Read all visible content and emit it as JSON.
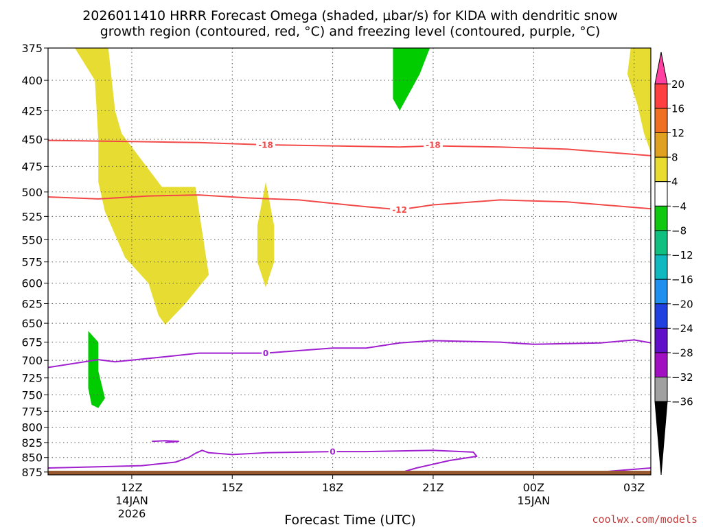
{
  "chart_data": {
    "type": "contour",
    "title_line1": "2026011410 HRRR Forecast Omega (shaded, μbar/s) for KIDA with dendritic snow",
    "title_line2": "growth region (contoured, red, °C) and freezing level (contoured, purple, °C)",
    "xlabel": "Forecast Time (UTC)",
    "credit": "coolwx.com/models",
    "y_axis": {
      "scale": "log",
      "reversed": true,
      "range": [
        375,
        880
      ],
      "ticks": [
        375,
        400,
        425,
        450,
        475,
        500,
        525,
        550,
        575,
        600,
        625,
        650,
        675,
        700,
        725,
        750,
        775,
        800,
        825,
        850,
        875
      ]
    },
    "x_axis": {
      "range": [
        9.5,
        27.5
      ],
      "grid": true,
      "ticks": [
        {
          "x": 12,
          "label": "12Z",
          "sub1": "14JAN",
          "sub2": "2026"
        },
        {
          "x": 15,
          "label": "15Z",
          "sub1": "",
          "sub2": ""
        },
        {
          "x": 18,
          "label": "18Z",
          "sub1": "",
          "sub2": ""
        },
        {
          "x": 21,
          "label": "21Z",
          "sub1": "",
          "sub2": ""
        },
        {
          "x": 24,
          "label": "00Z",
          "sub1": "15JAN",
          "sub2": ""
        },
        {
          "x": 27,
          "label": "03Z",
          "sub1": "",
          "sub2": ""
        }
      ]
    },
    "colorbar": {
      "labels": [
        "20",
        "16",
        "12",
        "8",
        "4",
        "−4",
        "−8",
        "−12",
        "−16",
        "−20",
        "−24",
        "−28",
        "−32",
        "−36"
      ],
      "colors": [
        "#ff40a0",
        "#ff4040",
        "#ee7020",
        "#e0a020",
        "#e8dc30",
        "#ffffff",
        "#10c810",
        "#10c080",
        "#10b8c0",
        "#2090f0",
        "#2040e0",
        "#6010c8",
        "#a010c0",
        "#a0a0a0",
        "#000000"
      ]
    },
    "omega_fill": [
      {
        "value": 4,
        "color": "#e6dc32",
        "points": [
          [
            10.3,
            375
          ],
          [
            11.3,
            375
          ],
          [
            11.5,
            425
          ],
          [
            11.7,
            445
          ],
          [
            12.9,
            495
          ],
          [
            13.9,
            495
          ],
          [
            14.3,
            590
          ],
          [
            13.6,
            625
          ],
          [
            13.0,
            652
          ],
          [
            12.8,
            640
          ],
          [
            12.5,
            600
          ],
          [
            11.8,
            570
          ],
          [
            11.2,
            520
          ],
          [
            11.0,
            490
          ],
          [
            11.0,
            450
          ],
          [
            10.9,
            400
          ]
        ]
      },
      {
        "value": 4,
        "color": "#e6dc32",
        "points": [
          [
            16.0,
            490
          ],
          [
            16.25,
            535
          ],
          [
            16.25,
            575
          ],
          [
            16.0,
            605
          ],
          [
            15.75,
            575
          ],
          [
            15.75,
            535
          ]
        ]
      },
      {
        "value": 4,
        "color": "#e6dc32",
        "points": [
          [
            26.9,
            375
          ],
          [
            27.5,
            375
          ],
          [
            27.5,
            462
          ],
          [
            27.3,
            445
          ],
          [
            27.1,
            420
          ],
          [
            26.8,
            395
          ]
        ]
      },
      {
        "value": -4,
        "color": "#00cc00",
        "points": [
          [
            19.8,
            375
          ],
          [
            20.9,
            375
          ],
          [
            20.6,
            395
          ],
          [
            20.0,
            425
          ],
          [
            19.8,
            415
          ]
        ]
      },
      {
        "value": -4,
        "color": "#00cc00",
        "points": [
          [
            10.7,
            660
          ],
          [
            11.0,
            675
          ],
          [
            11.0,
            715
          ],
          [
            11.2,
            755
          ],
          [
            11.0,
            770
          ],
          [
            10.8,
            765
          ],
          [
            10.7,
            740
          ]
        ]
      }
    ],
    "temperature_contours": [
      {
        "value": -18,
        "color": "#f24848",
        "label": "-18",
        "label_positions": [
          [
            16.0,
            455
          ],
          [
            21.0,
            455
          ]
        ],
        "points": [
          [
            9.5,
            451
          ],
          [
            12,
            452
          ],
          [
            14,
            453
          ],
          [
            16,
            455
          ],
          [
            18,
            456
          ],
          [
            20,
            457
          ],
          [
            21,
            456
          ],
          [
            23,
            457
          ],
          [
            25,
            459
          ],
          [
            27.5,
            465
          ]
        ]
      },
      {
        "value": -12,
        "color": "#f24848",
        "label": "-12",
        "label_positions": [
          [
            20.0,
            518
          ]
        ],
        "points": [
          [
            9.5,
            505
          ],
          [
            11,
            507
          ],
          [
            12.5,
            504
          ],
          [
            14,
            503
          ],
          [
            15.5,
            506
          ],
          [
            17,
            508
          ],
          [
            19,
            515
          ],
          [
            20,
            518
          ],
          [
            21,
            513
          ],
          [
            23,
            508
          ],
          [
            25,
            510
          ],
          [
            27.5,
            517
          ]
        ]
      }
    ],
    "freezing_level_contours": [
      {
        "value": 0,
        "color": "#a020d0",
        "label": "0",
        "label_positions": [
          [
            16.0,
            690
          ]
        ],
        "points": [
          [
            9.5,
            710
          ],
          [
            11,
            699
          ],
          [
            11.5,
            702
          ],
          [
            13,
            695
          ],
          [
            14,
            690
          ],
          [
            16,
            690
          ],
          [
            18,
            683
          ],
          [
            19,
            683
          ],
          [
            20,
            676
          ],
          [
            21,
            673
          ],
          [
            23,
            675
          ],
          [
            24,
            678
          ],
          [
            26,
            676
          ],
          [
            27,
            672
          ],
          [
            27.5,
            676
          ]
        ]
      },
      {
        "value": 0,
        "color": "#a020d0",
        "label": "0",
        "label_positions": [
          [
            18.0,
            840
          ]
        ],
        "points": [
          [
            9.5,
            868
          ],
          [
            11,
            866
          ],
          [
            12.3,
            864
          ],
          [
            13.3,
            858
          ],
          [
            13.7,
            850
          ],
          [
            13.9,
            843
          ],
          [
            14.1,
            838
          ],
          [
            14.3,
            842
          ],
          [
            15,
            845
          ],
          [
            16,
            842
          ],
          [
            18,
            840
          ],
          [
            19,
            840
          ],
          [
            21,
            838
          ],
          [
            22.2,
            841
          ],
          [
            22.3,
            848
          ],
          [
            21.5,
            855
          ],
          [
            20.5,
            868
          ],
          [
            19.8,
            880
          ]
        ]
      },
      {
        "value": 0,
        "color": "#a020d0",
        "label": "",
        "label_positions": [],
        "points": [
          [
            12.6,
            823
          ],
          [
            13.0,
            822
          ],
          [
            13.4,
            823
          ],
          [
            13.0,
            825
          ]
        ]
      },
      {
        "value": 0,
        "color": "#a020d0",
        "label": "",
        "label_positions": [],
        "points": [
          [
            24.8,
            880
          ],
          [
            26,
            875
          ],
          [
            27.5,
            868
          ]
        ]
      }
    ]
  }
}
